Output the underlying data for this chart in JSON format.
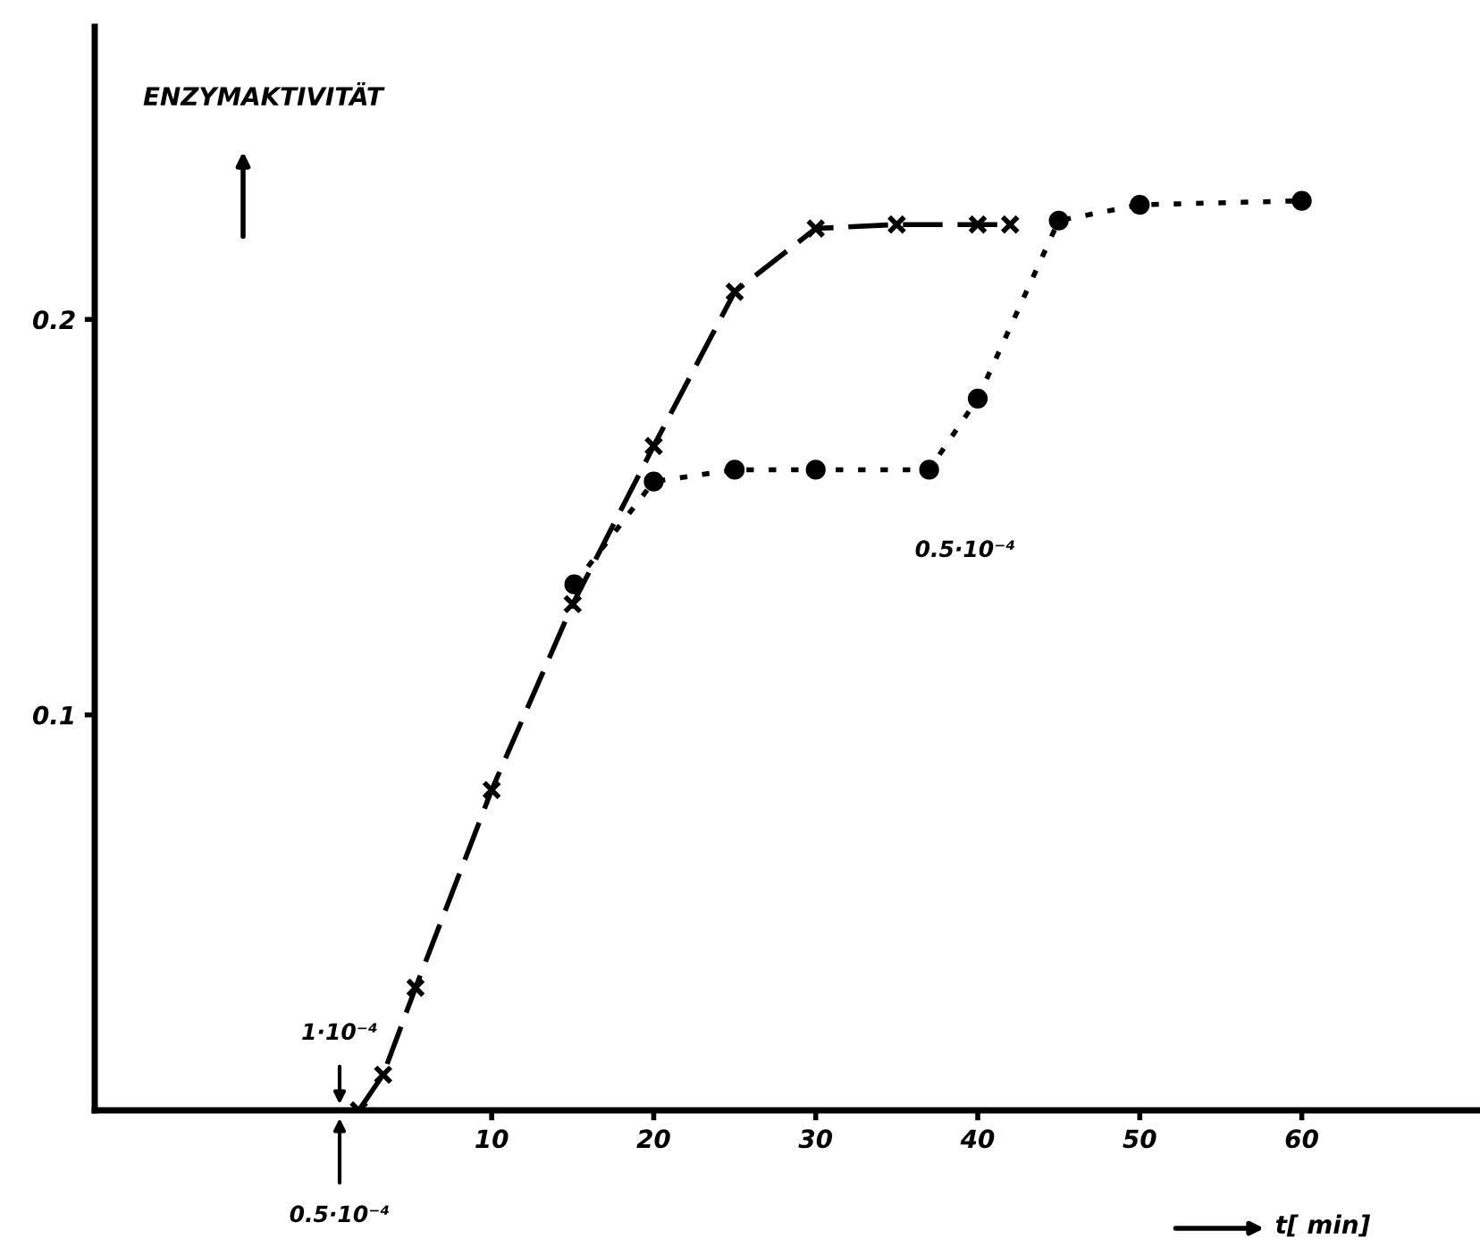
{
  "chart_data": {
    "type": "line",
    "ylabel": "ENZYMAKTIVITÄT",
    "xlabel": "t[ min]",
    "xlim": [
      -14.5,
      71
    ],
    "ylim": [
      0,
      0.274
    ],
    "xticks": [
      10,
      20,
      30,
      40,
      50,
      60
    ],
    "yticks": [
      {
        "value": 0.1,
        "label": "0.1"
      },
      {
        "value": 0.2,
        "label": "0.2"
      }
    ],
    "grid": false,
    "legend": false,
    "series": [
      {
        "color": "#000000",
        "marker": "cross",
        "line_style": "dashed",
        "x": [
          1.8,
          3.3,
          5.3,
          10,
          15,
          20,
          25,
          30,
          35,
          40,
          42
        ],
        "values": [
          0,
          0.009,
          0.031,
          0.081,
          0.128,
          0.168,
          0.207,
          0.223,
          0.224,
          0.224,
          0.224
        ]
      },
      {
        "color": "#000000",
        "marker": "circle",
        "line_style": "dotted",
        "x": [
          15.1,
          20,
          25,
          30,
          37,
          40,
          45,
          50,
          60
        ],
        "values": [
          0.133,
          0.159,
          0.162,
          0.162,
          0.162,
          0.18,
          0.225,
          0.229,
          0.23
        ]
      }
    ],
    "annotations": [
      "0.5·10⁻⁴",
      "1·10⁻⁴",
      "0.5·10⁻⁴"
    ]
  }
}
